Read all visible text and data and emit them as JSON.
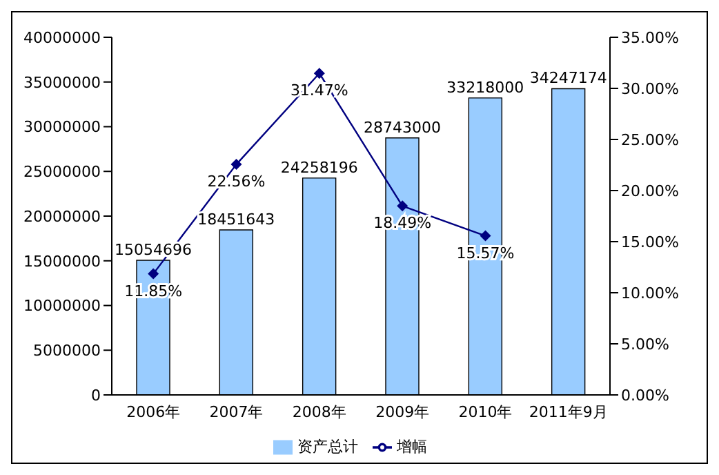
{
  "chart_data": {
    "type": "bar",
    "categories": [
      "2006年",
      "2007年",
      "2008年",
      "2009年",
      "2010年",
      "2011年9月"
    ],
    "series": [
      {
        "name": "资产总计",
        "color": "#99ccff",
        "values": [
          15054696,
          18451643,
          24258196,
          28743000,
          33218000,
          34247174
        ],
        "value_labels": [
          "15054696",
          "18451643",
          "24258196",
          "28743000",
          "33218000",
          "34247174"
        ]
      },
      {
        "name": "增幅",
        "type": "line",
        "axis": "y2",
        "color": "#000080",
        "values": [
          11.85,
          22.56,
          31.47,
          18.49,
          15.57,
          null
        ],
        "value_labels": [
          "11.85%",
          "22.56%",
          "31.47%",
          "18.49%",
          "15.57%",
          null
        ]
      }
    ],
    "ylim": [
      0,
      40000000
    ],
    "yticks": [
      0,
      5000000,
      10000000,
      15000000,
      20000000,
      25000000,
      30000000,
      35000000,
      40000000
    ],
    "y2lim": [
      0,
      35
    ],
    "y2ticks": [
      {
        "value": 0,
        "label": "0.00%"
      },
      {
        "value": 5,
        "label": "5.00%"
      },
      {
        "value": 10,
        "label": "10.00%"
      },
      {
        "value": 15,
        "label": "15.00%"
      },
      {
        "value": 20,
        "label": "20.00%"
      },
      {
        "value": 25,
        "label": "25.00%"
      },
      {
        "value": 30,
        "label": "30.00%"
      },
      {
        "value": 35,
        "label": "35.00%"
      }
    ],
    "legend": "bottom",
    "grid": false,
    "marker": "diamond",
    "line_style": "solid"
  }
}
